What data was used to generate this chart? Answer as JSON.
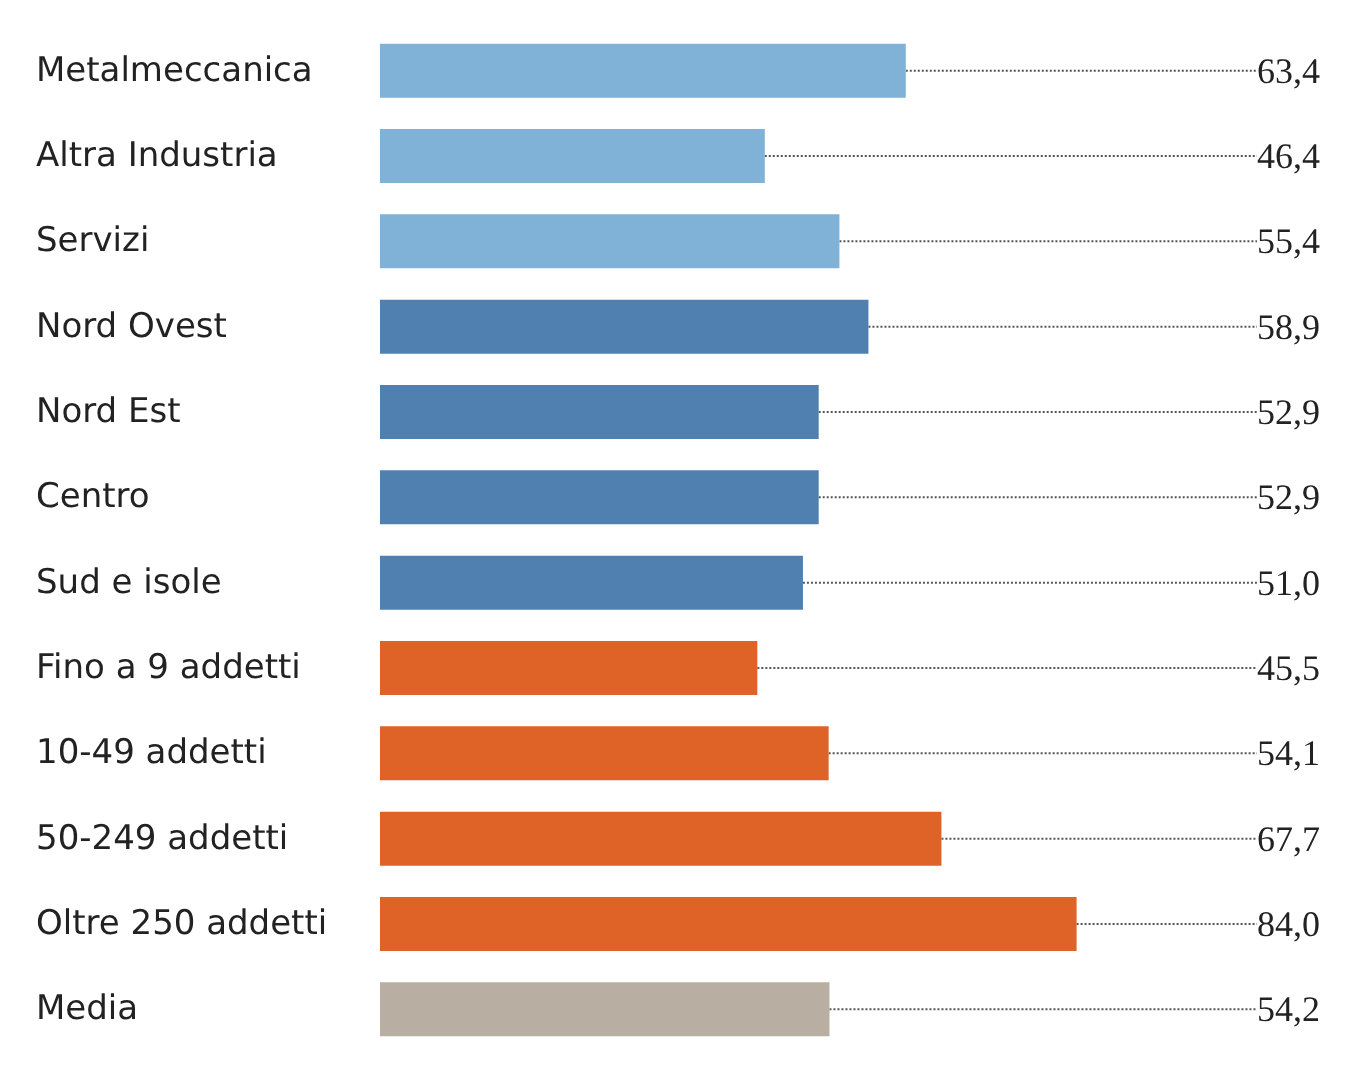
{
  "chart_data": {
    "type": "bar",
    "orientation": "horizontal",
    "value_labels": [
      "63,4",
      "46,4",
      "55,4",
      "58,9",
      "52,9",
      "52,9",
      "51,0",
      "45,5",
      "54,1",
      "67,7",
      "84,0",
      "54,2"
    ],
    "categories": [
      "Metalmeccanica",
      "Altra Industria",
      "Servizi",
      "Nord Ovest",
      "Nord Est",
      "Centro",
      "Sud e isole",
      "Fino a 9 addetti",
      "10-49 addetti",
      "50-249 addetti",
      "Oltre 250 addetti",
      "Media"
    ],
    "values": [
      63.4,
      46.4,
      55.4,
      58.9,
      52.9,
      52.9,
      51.0,
      45.5,
      54.1,
      67.7,
      84.0,
      54.2
    ],
    "colors": [
      "#80b1d6",
      "#80b1d6",
      "#80b1d6",
      "#4f80b0",
      "#4f80b0",
      "#4f80b0",
      "#4f80b0",
      "#df6326",
      "#df6326",
      "#df6326",
      "#df6326",
      "#b9aea2"
    ],
    "grid": false
  }
}
